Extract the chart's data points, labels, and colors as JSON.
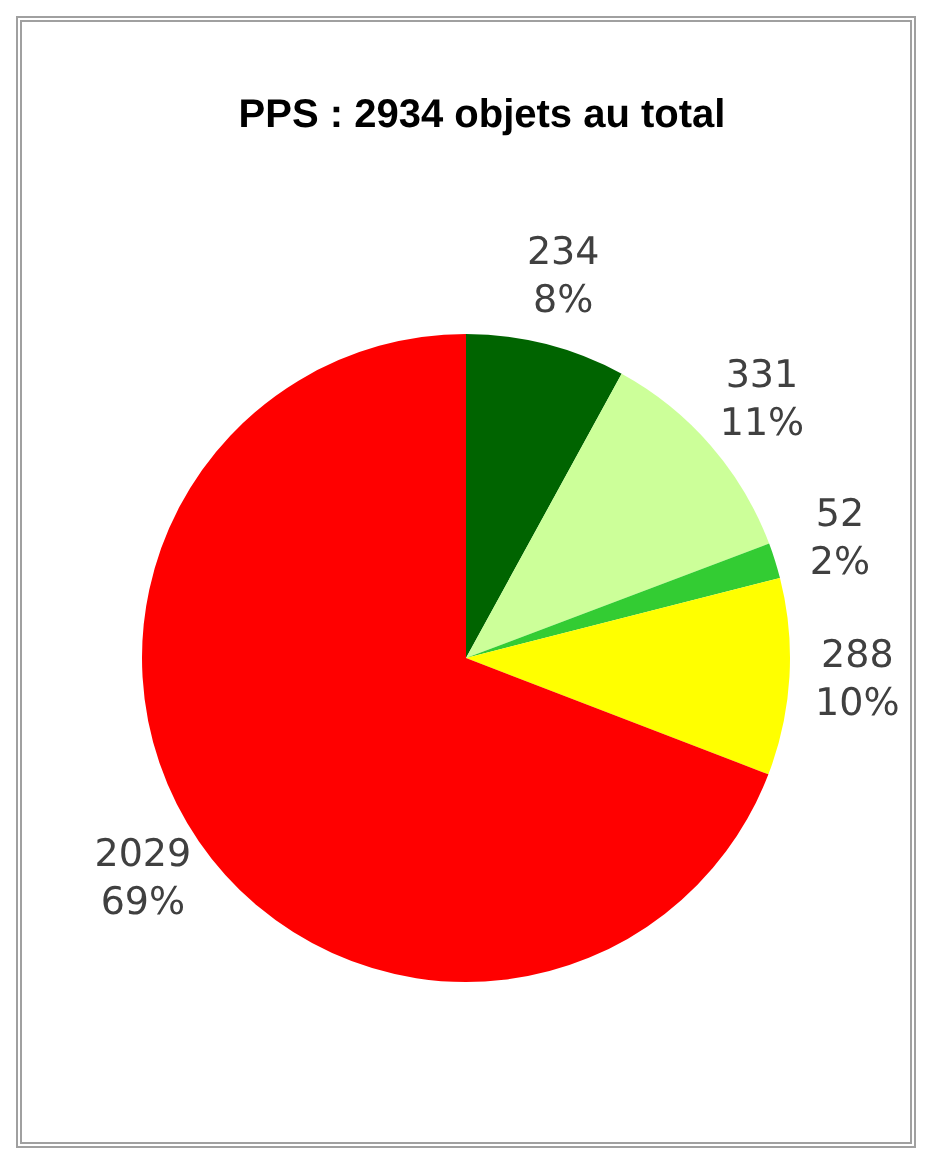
{
  "chart_data": {
    "type": "pie",
    "title": "PPS : 2934 objets au total",
    "categories": [
      null,
      null,
      null,
      null,
      null
    ],
    "values": [
      234,
      331,
      52,
      288,
      2029
    ],
    "colors": [
      "#006400",
      "#ccff99",
      "#33cc33",
      "#ffff00",
      "#ff0000"
    ],
    "value_labels": [
      "234\n8%",
      "331\n11%",
      "52\n2%",
      "288\n10%",
      "2029\n69%"
    ],
    "legend": false
  }
}
